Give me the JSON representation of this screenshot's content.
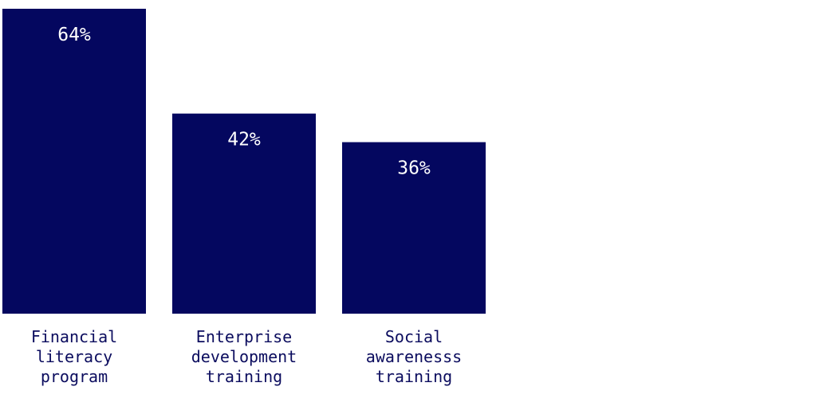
{
  "colors": {
    "bar": "#04075f",
    "value_label": "#ffffff",
    "category_label": "#0b0c5e",
    "background": "#ffffff"
  },
  "chart_data": {
    "type": "bar",
    "categories": [
      "Financial literacy program",
      "Enterprise development training",
      "Social awarenesss training"
    ],
    "category_lines": [
      [
        "Financial",
        "literacy",
        "program"
      ],
      [
        "Enterprise",
        "development",
        "training"
      ],
      [
        "Social",
        "awarenesss",
        "training"
      ]
    ],
    "values": [
      64,
      42,
      36
    ],
    "value_labels": [
      "64%",
      "42%",
      "36%"
    ],
    "unit": "%",
    "title": "",
    "xlabel": "",
    "ylabel": "",
    "ylim": [
      0,
      64
    ],
    "grid": false,
    "legend": "none"
  }
}
